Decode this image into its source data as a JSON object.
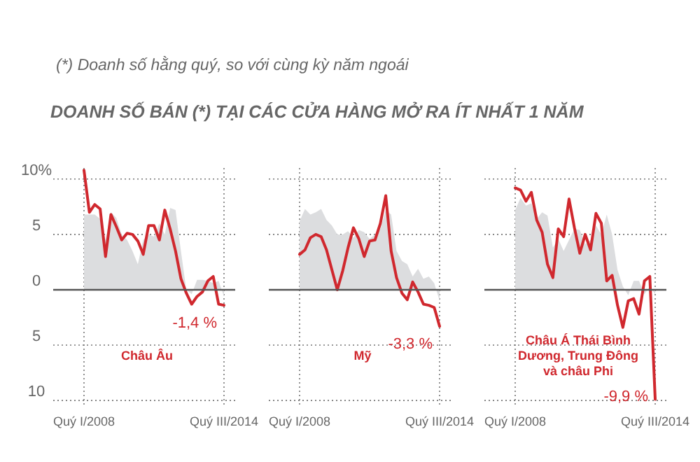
{
  "chart_data": [
    {
      "type": "line",
      "title": "DOANH SỐ BÁN (*) TẠI CÁC CỬA HÀNG MỞ RA ÍT NHẤT 1 NĂM",
      "subtitle": "(*) Doanh số hằng quý, so với cùng kỳ năm ngoái",
      "categories": [
        "Quý I/2008",
        null,
        null,
        null,
        null,
        null,
        null,
        null,
        null,
        null,
        null,
        null,
        null,
        null,
        null,
        null,
        null,
        null,
        null,
        null,
        null,
        null,
        null,
        null,
        null,
        null,
        "Quý III/2014"
      ],
      "ylim": [
        -10.5,
        11
      ],
      "yticks": [
        {
          "value": 10,
          "label": "10%"
        },
        5,
        0,
        {
          "value": -5,
          "label": "5"
        },
        {
          "value": -10,
          "label": "10"
        }
      ],
      "grid": true,
      "series": [
        {
          "type": "area",
          "color": "#dcdddf",
          "values": [
            6.8,
            6.8,
            6.8,
            6.4,
            4.5,
            7.0,
            6.5,
            5.0,
            4.5,
            3.5,
            2.3,
            4.5,
            5.0,
            4.8,
            6.0,
            5.0,
            7.4,
            7.2,
            3.5,
            0.0,
            -0.4,
            0.9,
            0.9,
            0.8,
            0.6,
            0.8,
            -0.6
          ]
        },
        {
          "type": "line",
          "color": "#d0282e",
          "values": [
            10.8,
            7.0,
            7.7,
            7.3,
            3.0,
            6.8,
            5.7,
            4.5,
            5.1,
            5.0,
            4.4,
            3.2,
            5.8,
            5.8,
            4.5,
            7.2,
            5.5,
            3.5,
            1.0,
            -0.3,
            -1.3,
            -0.6,
            -0.2,
            0.8,
            1.2,
            -1.3,
            -1.4
          ]
        }
      ],
      "annotations": [
        "Châu Âu",
        {
          "text": "-1,4 %",
          "x": "Quý III/2014",
          "y": -1.4
        }
      ]
    },
    {
      "type": "line",
      "categories": [
        "Quý I/2008",
        null,
        null,
        null,
        null,
        null,
        null,
        null,
        null,
        null,
        null,
        null,
        null,
        null,
        null,
        null,
        null,
        null,
        null,
        null,
        null,
        null,
        null,
        null,
        null,
        null,
        "Quý III/2014"
      ],
      "ylim": [
        -10.5,
        11
      ],
      "yticks": [
        10,
        5,
        0,
        -5,
        -10
      ],
      "grid": true,
      "tick_labels": "x",
      "series": [
        {
          "type": "area",
          "color": "#dcdddf",
          "values": [
            6.2,
            7.3,
            6.8,
            7.0,
            7.3,
            6.3,
            5.8,
            5.0,
            5.0,
            5.3,
            4.7,
            5.4,
            5.2,
            4.6,
            5.0,
            5.5,
            7.2,
            6.8,
            3.5,
            2.6,
            2.3,
            1.2,
            1.9,
            1.0,
            1.2,
            0.6,
            -1.0
          ]
        },
        {
          "type": "line",
          "color": "#d0282e",
          "values": [
            3.2,
            3.6,
            4.7,
            5.0,
            4.8,
            3.6,
            1.8,
            0.0,
            1.7,
            3.8,
            5.6,
            4.6,
            3.0,
            4.4,
            4.5,
            6.0,
            8.5,
            3.5,
            1.1,
            -0.3,
            -0.9,
            0.7,
            -0.2,
            -1.3,
            -1.4,
            -1.6,
            -3.3
          ]
        }
      ],
      "annotations": [
        "Mỹ",
        {
          "text": "-3,3 %",
          "x": "Quý III/2014",
          "y": -3.3
        }
      ]
    },
    {
      "type": "line",
      "categories": [
        "Quý I/2008",
        null,
        null,
        null,
        null,
        null,
        null,
        null,
        null,
        null,
        null,
        null,
        null,
        null,
        null,
        null,
        null,
        null,
        null,
        null,
        null,
        null,
        null,
        null,
        null,
        null,
        "Quý III/2014"
      ],
      "ylim": [
        -10.5,
        11
      ],
      "yticks": [
        10,
        5,
        0,
        -5,
        -10
      ],
      "grid": true,
      "tick_labels": "x",
      "series": [
        {
          "type": "area",
          "color": "#dcdddf",
          "values": [
            7.2,
            8.3,
            7.6,
            7.8,
            6.4,
            7.0,
            6.7,
            3.8,
            4.6,
            3.5,
            4.5,
            5.5,
            5.4,
            4.1,
            4.5,
            5.8,
            5.0,
            6.8,
            5.0,
            1.8,
            0.3,
            -0.5,
            0.8,
            0.8,
            -0.4,
            0.3,
            -0.4
          ]
        },
        {
          "type": "line",
          "color": "#d0282e",
          "values": [
            9.2,
            9.0,
            8.0,
            8.8,
            6.3,
            5.2,
            2.3,
            1.1,
            5.5,
            4.8,
            8.2,
            5.6,
            3.3,
            5.0,
            3.6,
            6.9,
            6.0,
            0.8,
            1.3,
            -1.4,
            -3.4,
            -1.0,
            -0.8,
            -2.2,
            0.8,
            1.2,
            -9.9
          ]
        }
      ],
      "annotations": [
        "Châu Á Thái Bình Dương, Trung Đông và châu Phi",
        {
          "text": "-9,9 %",
          "x": "Quý III/2014",
          "y": -9.9
        }
      ]
    }
  ]
}
